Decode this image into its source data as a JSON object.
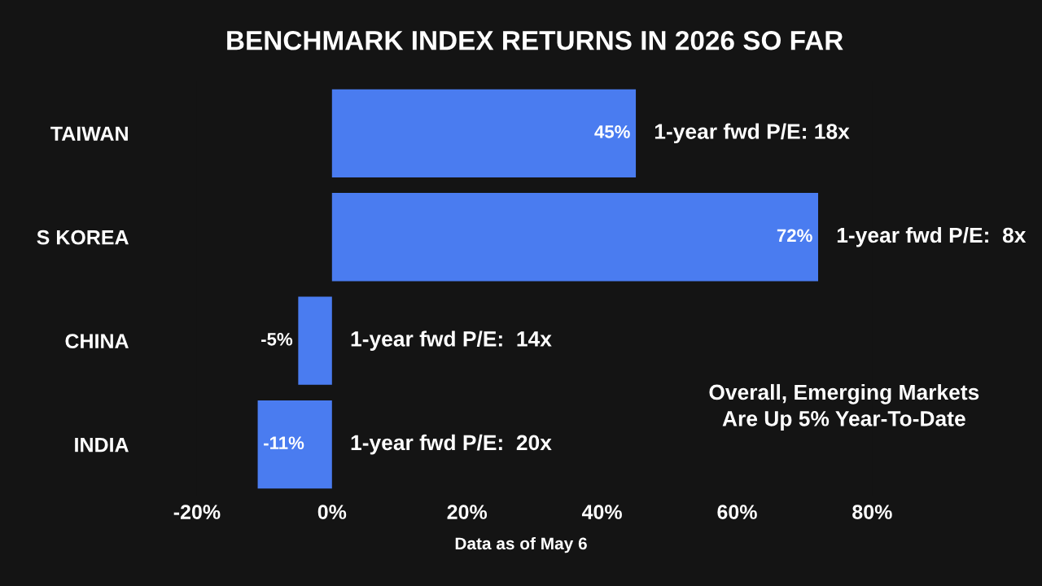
{
  "chart_data": {
    "type": "bar",
    "orientation": "horizontal",
    "title": "BENCHMARK INDEX RETURNS IN 2026 SO FAR",
    "categories": [
      "TAIWAN",
      "S KOREA",
      "CHINA",
      "INDIA"
    ],
    "values": [
      45,
      72,
      -5,
      -11
    ],
    "color": "#4a7cf0",
    "value_labels": [
      "45%",
      "72%",
      "-5%",
      "-11%"
    ],
    "xlim": [
      -20,
      80
    ],
    "xticks": [
      {
        "value": -20,
        "label": "-20%"
      },
      {
        "value": 0,
        "label": "0%"
      },
      {
        "value": 20,
        "label": "20%"
      },
      {
        "value": 40,
        "label": "40%"
      },
      {
        "value": 60,
        "label": "60%"
      },
      {
        "value": 80,
        "label": "80%"
      }
    ],
    "grid": false,
    "legend": false,
    "annotations": [
      "1-year fwd P/E: 18x",
      "1-year fwd P/E:  8x",
      "1-year fwd P/E:  14x",
      "1-year fwd P/E:  20x",
      "Overall, Emerging Markets\nAre Up 5% Year-To-Date",
      "Data as of May 6"
    ]
  }
}
